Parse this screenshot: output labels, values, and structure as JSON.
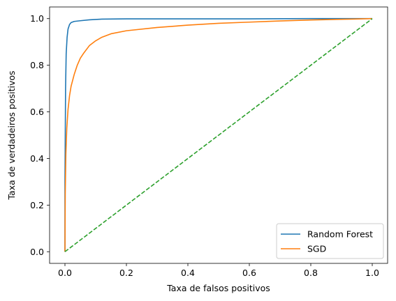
{
  "chart_data": {
    "type": "line",
    "title": "",
    "xlabel": "Taxa de falsos positivos",
    "ylabel": "Taxa de verdadeiros positivos",
    "xlim": [
      -0.05,
      1.05
    ],
    "ylim": [
      -0.05,
      1.05
    ],
    "x_ticks": [
      "0.0",
      "0.2",
      "0.4",
      "0.6",
      "0.8",
      "1.0"
    ],
    "y_ticks": [
      "0.0",
      "0.2",
      "0.4",
      "0.6",
      "0.8",
      "1.0"
    ],
    "grid": false,
    "legend_position": "lower right",
    "series": [
      {
        "name": "Random Forest",
        "color": "#1f77b4",
        "style": "solid",
        "points": [
          [
            0,
            0
          ],
          [
            0.0,
            0.3
          ],
          [
            0.002,
            0.7
          ],
          [
            0.004,
            0.85
          ],
          [
            0.007,
            0.92
          ],
          [
            0.01,
            0.955
          ],
          [
            0.015,
            0.975
          ],
          [
            0.02,
            0.983
          ],
          [
            0.03,
            0.988
          ],
          [
            0.05,
            0.991
          ],
          [
            0.08,
            0.995
          ],
          [
            0.12,
            0.998
          ],
          [
            0.2,
            0.999
          ],
          [
            0.4,
            0.999
          ],
          [
            0.6,
            0.999
          ],
          [
            0.8,
            1.0
          ],
          [
            1.0,
            1.0
          ]
        ]
      },
      {
        "name": "SGD",
        "color": "#ff7f0e",
        "style": "solid",
        "points": [
          [
            0,
            0
          ],
          [
            0.001,
            0.25
          ],
          [
            0.003,
            0.42
          ],
          [
            0.006,
            0.53
          ],
          [
            0.01,
            0.61
          ],
          [
            0.015,
            0.67
          ],
          [
            0.02,
            0.71
          ],
          [
            0.03,
            0.76
          ],
          [
            0.04,
            0.8
          ],
          [
            0.05,
            0.83
          ],
          [
            0.06,
            0.85
          ],
          [
            0.08,
            0.885
          ],
          [
            0.1,
            0.905
          ],
          [
            0.12,
            0.92
          ],
          [
            0.15,
            0.935
          ],
          [
            0.2,
            0.948
          ],
          [
            0.3,
            0.962
          ],
          [
            0.4,
            0.972
          ],
          [
            0.5,
            0.98
          ],
          [
            0.6,
            0.985
          ],
          [
            0.7,
            0.99
          ],
          [
            0.8,
            0.994
          ],
          [
            0.9,
            0.997
          ],
          [
            1.0,
            1.0
          ]
        ]
      },
      {
        "name": "",
        "color": "#2ca02c",
        "style": "dashed",
        "points": [
          [
            0,
            0
          ],
          [
            1,
            1
          ]
        ]
      }
    ]
  }
}
